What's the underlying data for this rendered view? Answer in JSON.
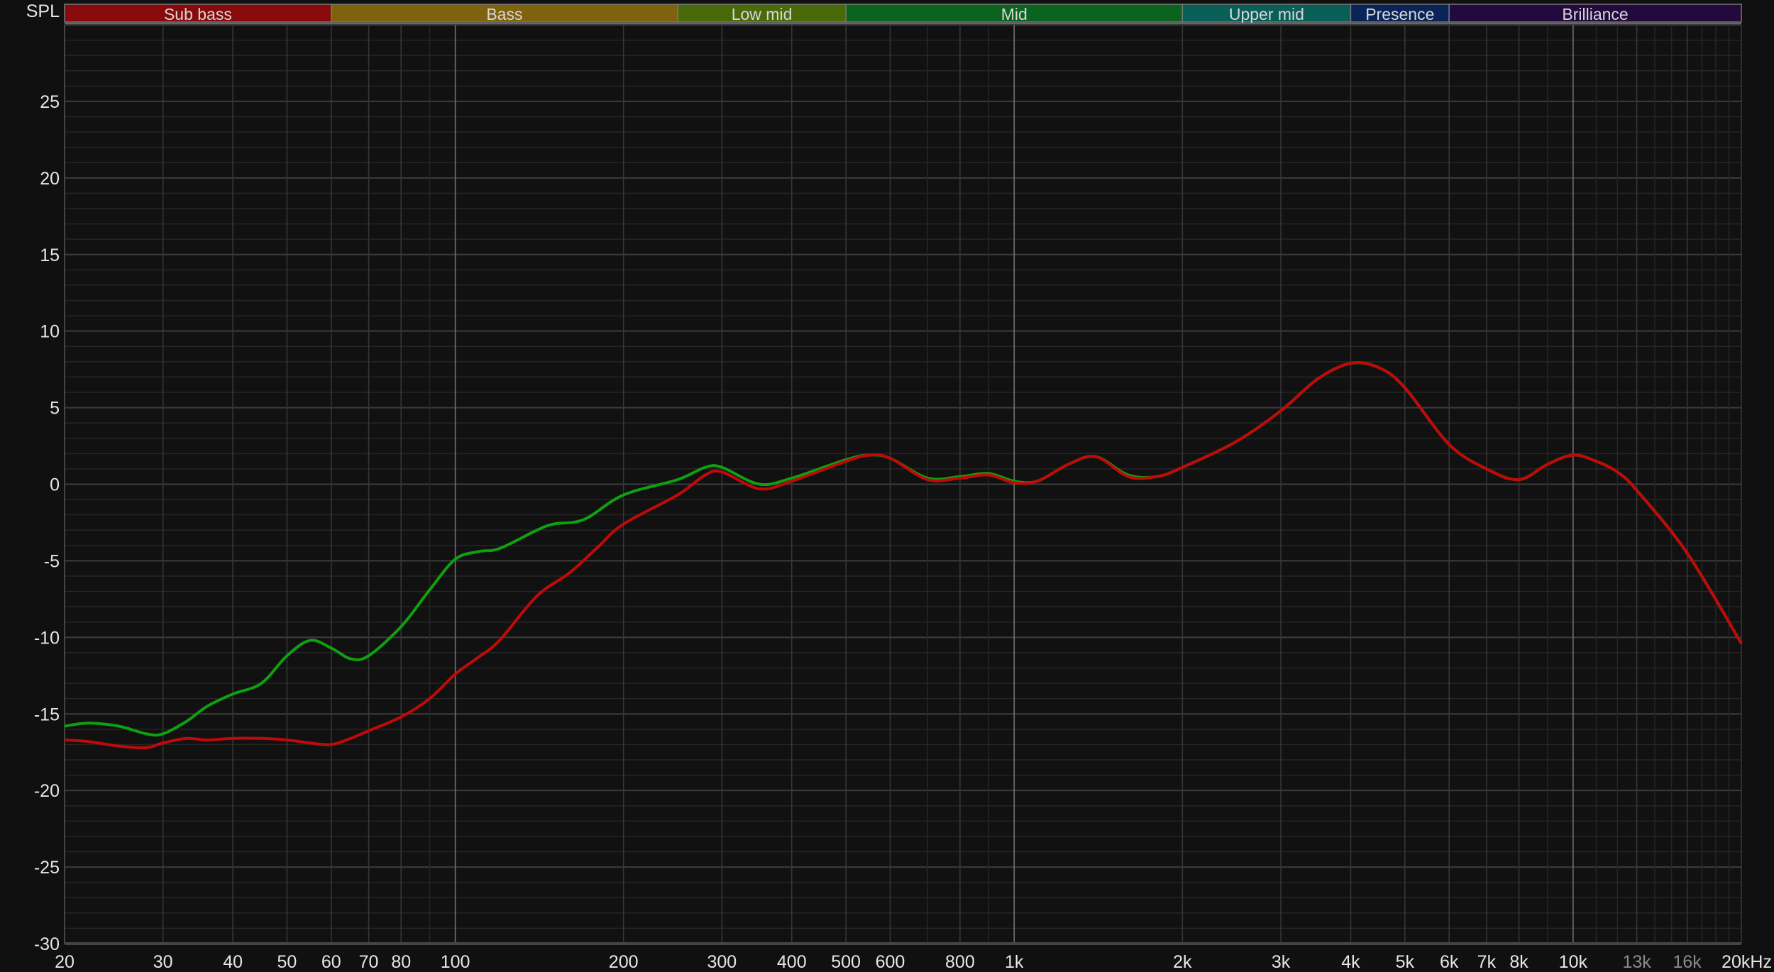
{
  "chart_data": {
    "type": "line",
    "ylabel": "SPL",
    "x_unit_label": "20kHz",
    "x_scale": "log",
    "xlim": [
      20,
      20000
    ],
    "ylim": [
      -30,
      30
    ],
    "grid": true,
    "y_ticks": [
      25,
      20,
      15,
      10,
      5,
      0,
      -5,
      -10,
      -15,
      -20,
      -25,
      -30
    ],
    "x_ticks": [
      {
        "value": 20,
        "label": "20"
      },
      {
        "value": 30,
        "label": "30"
      },
      {
        "value": 40,
        "label": "40"
      },
      {
        "value": 50,
        "label": "50"
      },
      {
        "value": 60,
        "label": "60"
      },
      {
        "value": 70,
        "label": "70"
      },
      {
        "value": 80,
        "label": "80"
      },
      {
        "value": 100,
        "label": "100"
      },
      {
        "value": 200,
        "label": "200"
      },
      {
        "value": 300,
        "label": "300"
      },
      {
        "value": 400,
        "label": "400"
      },
      {
        "value": 500,
        "label": "500"
      },
      {
        "value": 600,
        "label": "600"
      },
      {
        "value": 800,
        "label": "800"
      },
      {
        "value": 1000,
        "label": "1k"
      },
      {
        "value": 2000,
        "label": "2k"
      },
      {
        "value": 3000,
        "label": "3k"
      },
      {
        "value": 4000,
        "label": "4k"
      },
      {
        "value": 5000,
        "label": "5k"
      },
      {
        "value": 6000,
        "label": "6k"
      },
      {
        "value": 7000,
        "label": "7k"
      },
      {
        "value": 8000,
        "label": "8k"
      },
      {
        "value": 10000,
        "label": "10k"
      },
      {
        "value": 13000,
        "label": "13k",
        "dim": true
      },
      {
        "value": 16000,
        "label": "16k",
        "dim": true
      },
      {
        "value": 20000,
        "label": "20kHz"
      }
    ],
    "bands": [
      {
        "label": "Sub bass",
        "from": 20,
        "to": 60,
        "color": "#880a0a"
      },
      {
        "label": "Bass",
        "from": 60,
        "to": 250,
        "color": "#7f620c"
      },
      {
        "label": "Low mid",
        "from": 250,
        "to": 500,
        "color": "#4a6a0a"
      },
      {
        "label": "Mid",
        "from": 500,
        "to": 2000,
        "color": "#0a6420"
      },
      {
        "label": "Upper mid",
        "from": 2000,
        "to": 4000,
        "color": "#0a5e58"
      },
      {
        "label": "Presence",
        "from": 4000,
        "to": 6000,
        "color": "#0a2458"
      },
      {
        "label": "Brilliance",
        "from": 6000,
        "to": 20000,
        "color": "#22093e"
      }
    ],
    "series": [
      {
        "color": "#0fa00f",
        "x": [
          20,
          22,
          25,
          28,
          30,
          33,
          36,
          40,
          45,
          50,
          55,
          60,
          65,
          70,
          80,
          90,
          100,
          110,
          120,
          140,
          150,
          170,
          200,
          250,
          280,
          300,
          350,
          400,
          500,
          550,
          600,
          700,
          800,
          900,
          1000,
          1100,
          1250,
          1400,
          1600,
          1800,
          2000,
          2500,
          3000,
          3500,
          4000,
          4500,
          5000,
          6000,
          7000,
          8000,
          9000,
          10000,
          11000,
          12000,
          13000,
          16000,
          20000
        ],
        "y": [
          -15.8,
          -15.6,
          -15.8,
          -16.3,
          -16.3,
          -15.5,
          -14.5,
          -13.7,
          -13.0,
          -11.2,
          -10.2,
          -10.7,
          -11.4,
          -11.2,
          -9.3,
          -6.9,
          -4.9,
          -4.4,
          -4.2,
          -3.0,
          -2.6,
          -2.3,
          -0.7,
          0.3,
          1.1,
          1.1,
          0.0,
          0.4,
          1.6,
          1.9,
          1.7,
          0.4,
          0.5,
          0.7,
          0.2,
          0.2,
          1.3,
          1.8,
          0.6,
          0.5,
          1.1,
          2.8,
          4.8,
          6.9,
          7.9,
          7.6,
          6.3,
          2.6,
          1.0,
          0.3,
          1.3,
          1.9,
          1.5,
          0.8,
          -0.4,
          -4.5,
          -10.4
        ]
      },
      {
        "color": "#c00a0a",
        "x": [
          20,
          22,
          25,
          28,
          30,
          33,
          36,
          40,
          45,
          50,
          55,
          60,
          65,
          70,
          80,
          90,
          100,
          110,
          120,
          140,
          160,
          180,
          200,
          250,
          280,
          300,
          350,
          400,
          500,
          550,
          600,
          700,
          800,
          900,
          1000,
          1100,
          1250,
          1400,
          1600,
          1800,
          2000,
          2500,
          3000,
          3500,
          4000,
          4500,
          5000,
          6000,
          7000,
          8000,
          9000,
          10000,
          11000,
          12000,
          13000,
          16000,
          20000
        ],
        "y": [
          -16.7,
          -16.8,
          -17.1,
          -17.2,
          -16.9,
          -16.6,
          -16.7,
          -16.6,
          -16.6,
          -16.7,
          -16.9,
          -17.0,
          -16.6,
          -16.1,
          -15.2,
          -14.0,
          -12.4,
          -11.3,
          -10.2,
          -7.3,
          -5.8,
          -4.1,
          -2.6,
          -0.7,
          0.6,
          0.8,
          -0.3,
          0.2,
          1.5,
          1.9,
          1.7,
          0.3,
          0.4,
          0.6,
          0.1,
          0.2,
          1.3,
          1.8,
          0.5,
          0.5,
          1.1,
          2.8,
          4.8,
          6.9,
          7.9,
          7.6,
          6.3,
          2.6,
          1.0,
          0.3,
          1.3,
          1.9,
          1.5,
          0.8,
          -0.4,
          -4.5,
          -10.4
        ]
      }
    ]
  }
}
